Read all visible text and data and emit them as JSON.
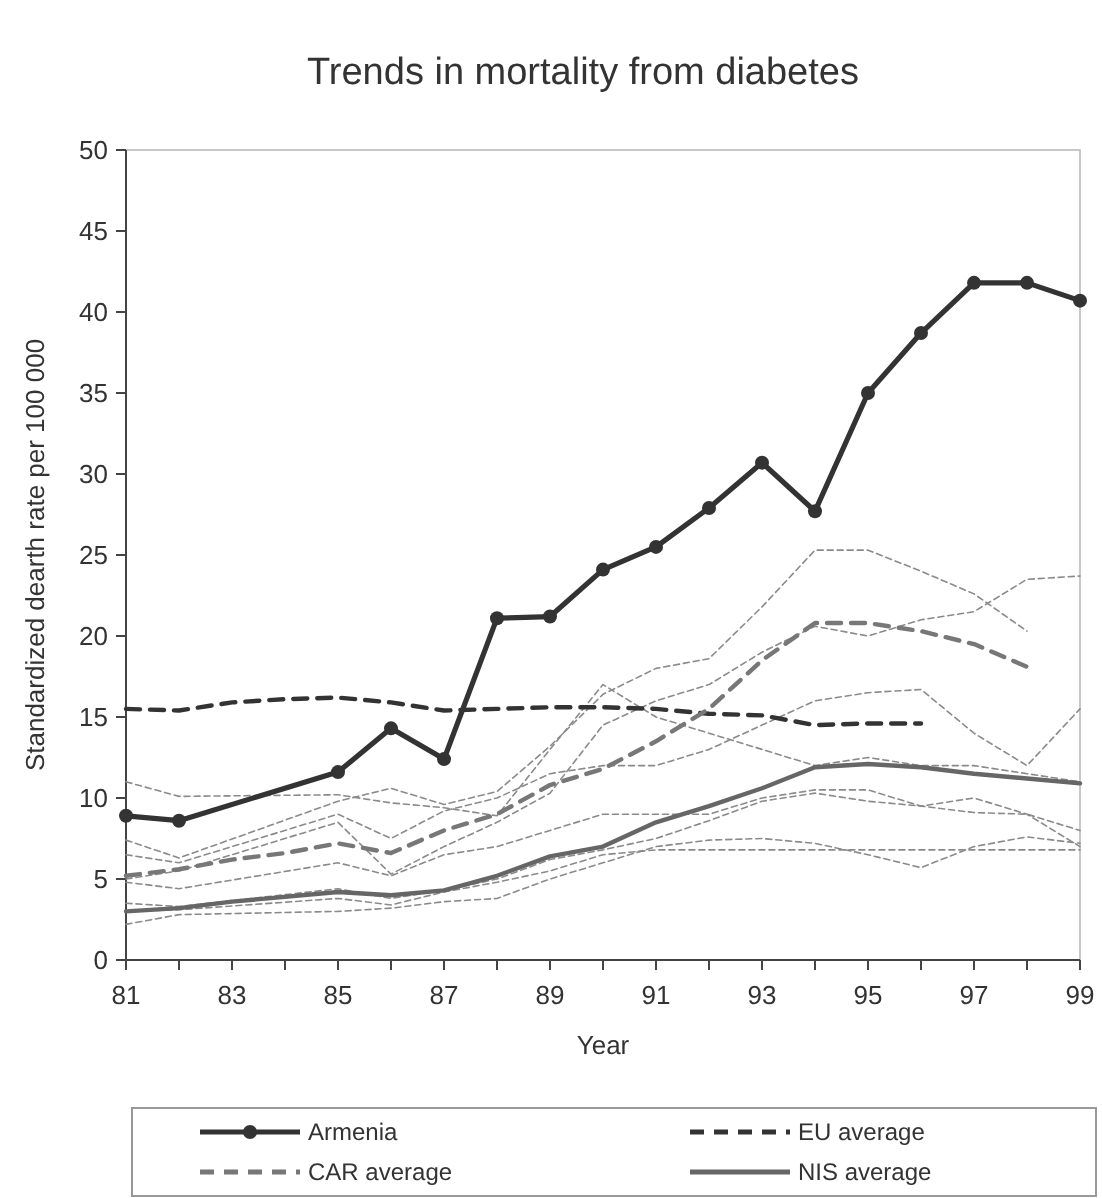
{
  "chart_data": {
    "type": "line",
    "title": "Trends in mortality from diabetes",
    "xlabel": "Year",
    "ylabel": "Standardized dearth rate per 100 000",
    "xlim": [
      81,
      99
    ],
    "xticks": [
      81,
      {
        "value": 82,
        "label": null
      },
      83,
      {
        "value": 84,
        "label": null
      },
      85,
      {
        "value": 86,
        "label": null
      },
      87,
      {
        "value": 88,
        "label": null
      },
      89,
      {
        "value": 90,
        "label": null
      },
      91,
      {
        "value": 92,
        "label": null
      },
      93,
      {
        "value": 94,
        "label": null
      },
      95,
      {
        "value": 96,
        "label": null
      },
      97,
      {
        "value": 98,
        "label": null
      },
      99
    ],
    "ylim": [
      0,
      50
    ],
    "yticks": [
      0,
      5,
      10,
      15,
      20,
      25,
      30,
      35,
      40,
      45,
      50
    ],
    "legend": "bottom",
    "series": [
      {
        "color": "#8a8a8a",
        "line_style": "dashed",
        "x": [
          81,
          82,
          85,
          86,
          87,
          88,
          89,
          90,
          91,
          92,
          93,
          94,
          95,
          96,
          97,
          98,
          99
        ],
        "values": [
          11,
          10.1,
          10.2,
          9.7,
          9.4,
          8.9,
          13,
          17,
          15,
          14,
          13,
          12,
          12.5,
          12,
          12,
          11.5,
          11
        ]
      },
      {
        "color": "#8a8a8a",
        "line_style": "dashed",
        "x": [
          81,
          82,
          85,
          86,
          87,
          88,
          89,
          90,
          91,
          92,
          93,
          94,
          95,
          96,
          97,
          98
        ],
        "values": [
          7.4,
          6.3,
          9.8,
          10.6,
          9.6,
          10.4,
          13.2,
          16.4,
          18,
          18.6,
          21.8,
          25.3,
          25.3,
          24,
          22.6,
          20.3
        ]
      },
      {
        "color": "#8a8a8a",
        "line_style": "dashed",
        "x": [
          81,
          82,
          85,
          86,
          87,
          88,
          89,
          90,
          91,
          92,
          93,
          94,
          95,
          96,
          97,
          98,
          99
        ],
        "values": [
          5,
          5.5,
          8.5,
          5.3,
          7,
          8.5,
          10.3,
          14.5,
          16,
          17,
          19,
          20.6,
          20,
          21,
          21.5,
          23.5,
          23.7
        ]
      },
      {
        "color": "#8a8a8a",
        "line_style": "dashed",
        "x": [
          81,
          82,
          85,
          86,
          87,
          88,
          89,
          90,
          91,
          92,
          93,
          94,
          95,
          96,
          97,
          98,
          99
        ],
        "values": [
          6.5,
          6,
          9,
          7.5,
          9.2,
          10,
          11.5,
          12,
          12,
          13,
          14.5,
          16,
          16.5,
          16.7,
          14,
          12,
          15.5
        ]
      },
      {
        "color": "#8a8a8a",
        "line_style": "dashed",
        "x": [
          81,
          82,
          85,
          86,
          87,
          88,
          89,
          90,
          91,
          92,
          93,
          94,
          95,
          96,
          97,
          98,
          99
        ],
        "values": [
          4.8,
          4.4,
          6,
          5.2,
          6.5,
          7,
          8,
          9,
          9,
          9,
          10,
          10.5,
          10.5,
          9.5,
          10,
          9,
          7
        ]
      },
      {
        "color": "#8a8a8a",
        "line_style": "dashed",
        "x": [
          81,
          82,
          85,
          86,
          87,
          88,
          89,
          90,
          91,
          92,
          93,
          94,
          95,
          96,
          97,
          98,
          99
        ],
        "values": [
          3.5,
          3.3,
          4.4,
          3.8,
          4.3,
          5,
          6.2,
          6.8,
          7.5,
          8.6,
          9.8,
          10.3,
          9.8,
          9.5,
          9.1,
          9,
          8
        ]
      },
      {
        "color": "#8a8a8a",
        "line_style": "dashed",
        "x": [
          81,
          82,
          85,
          86,
          87,
          88,
          89,
          90,
          91,
          92,
          93,
          94,
          95,
          96,
          97,
          98,
          99
        ],
        "values": [
          2.2,
          2.8,
          3,
          3.2,
          3.6,
          3.8,
          5,
          6,
          7,
          7.4,
          7.5,
          7.2,
          6.5,
          5.7,
          7,
          7.6,
          7.2
        ]
      },
      {
        "color": "#8a8a8a",
        "line_style": "dashed",
        "x": [
          81,
          82,
          85,
          86,
          87,
          88,
          89,
          90,
          91,
          92,
          93,
          94,
          95,
          96,
          97,
          98,
          99
        ],
        "values": [
          3,
          3.1,
          3.8,
          3.4,
          4.2,
          4.8,
          5.5,
          6.5,
          6.8,
          6.8,
          6.8,
          6.8,
          6.8,
          6.8,
          6.8,
          6.8,
          6.8
        ]
      },
      {
        "name": "Armenia",
        "color": "#333333",
        "marker": "circle",
        "line_style": "solid",
        "x": [
          81,
          82,
          85,
          86,
          87,
          88,
          89,
          90,
          91,
          92,
          93,
          94,
          95,
          96,
          97,
          98,
          99
        ],
        "values": [
          8.9,
          8.6,
          11.6,
          14.3,
          12.4,
          21.1,
          21.2,
          24.1,
          25.5,
          27.9,
          30.7,
          27.7,
          35,
          38.7,
          41.8,
          41.8,
          40.7
        ]
      },
      {
        "name": "EU average",
        "color": "#333333",
        "line_style": "dashed",
        "x": [
          81,
          82,
          83,
          84,
          85,
          86,
          87,
          88,
          89,
          90,
          91,
          92,
          93,
          94,
          95,
          96
        ],
        "values": [
          15.5,
          15.4,
          15.9,
          16.1,
          16.2,
          15.9,
          15.4,
          15.5,
          15.6,
          15.6,
          15.5,
          15.2,
          15.1,
          14.5,
          14.6,
          14.6
        ]
      },
      {
        "name": "CAR average",
        "color": "#777777",
        "line_style": "dashed",
        "x": [
          81,
          82,
          83,
          84,
          85,
          86,
          87,
          88,
          89,
          90,
          91,
          92,
          93,
          94,
          95,
          96,
          97,
          98
        ],
        "values": [
          5.2,
          5.6,
          6.2,
          6.6,
          7.2,
          6.6,
          8,
          9,
          10.8,
          11.8,
          13.5,
          15.5,
          18.5,
          20.8,
          20.8,
          20.3,
          19.5,
          18.1
        ]
      },
      {
        "name": "NIS average",
        "color": "#666666",
        "line_style": "solid",
        "x": [
          81,
          82,
          83,
          84,
          85,
          86,
          87,
          88,
          89,
          90,
          91,
          92,
          93,
          94,
          95,
          96,
          97,
          98,
          99
        ],
        "values": [
          3,
          3.2,
          3.6,
          3.9,
          4.2,
          4,
          4.3,
          5.2,
          6.4,
          7,
          8.5,
          9.5,
          10.6,
          11.9,
          12.1,
          11.9,
          11.5,
          11.2,
          10.9
        ]
      }
    ]
  }
}
